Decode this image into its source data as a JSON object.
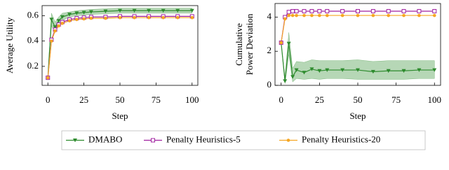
{
  "chart_data": [
    {
      "type": "line",
      "xlabel": "Step",
      "ylabel": [
        "Average Utility"
      ],
      "x": [
        0,
        2.5,
        5,
        7.5,
        10,
        15,
        20,
        25,
        30,
        40,
        50,
        60,
        70,
        80,
        90,
        100
      ],
      "xlim": [
        -4,
        104
      ],
      "xticks": [
        0,
        25,
        50,
        75,
        100
      ],
      "ylim": [
        0.05,
        0.68
      ],
      "yticks": [
        0.2,
        0.4,
        0.6
      ],
      "legend": "bottom",
      "series": [
        {
          "name": "DMABO",
          "color": "#2e8b2e",
          "marker": "triangle-down",
          "values": [
            0.11,
            0.57,
            0.51,
            0.56,
            0.59,
            0.61,
            0.62,
            0.625,
            0.63,
            0.635,
            0.64,
            0.64,
            0.64,
            0.64,
            0.64,
            0.64
          ],
          "lower": [
            0.11,
            0.52,
            0.47,
            0.53,
            0.56,
            0.59,
            0.6,
            0.605,
            0.61,
            0.615,
            0.62,
            0.62,
            0.62,
            0.62,
            0.62,
            0.62
          ],
          "upper": [
            0.11,
            0.62,
            0.55,
            0.59,
            0.62,
            0.63,
            0.64,
            0.645,
            0.65,
            0.655,
            0.66,
            0.66,
            0.66,
            0.66,
            0.66,
            0.66
          ]
        },
        {
          "name": "Penalty Heuristics-5",
          "color": "#a020a0",
          "marker": "square",
          "values": [
            0.11,
            0.41,
            0.49,
            0.53,
            0.55,
            0.57,
            0.58,
            0.585,
            0.59,
            0.59,
            0.595,
            0.595,
            0.595,
            0.595,
            0.595,
            0.595
          ]
        },
        {
          "name": "Penalty Heuristics-20",
          "color": "#f5a623",
          "marker": "circle",
          "values": [
            0.11,
            0.4,
            0.48,
            0.52,
            0.54,
            0.56,
            0.57,
            0.575,
            0.58,
            0.58,
            0.585,
            0.585,
            0.585,
            0.585,
            0.585,
            0.585
          ]
        }
      ]
    },
    {
      "type": "line",
      "xlabel": "Step",
      "ylabel": [
        "Cumulative",
        "Power Deviation"
      ],
      "x": [
        0,
        2.5,
        5,
        7.5,
        10,
        15,
        20,
        25,
        30,
        40,
        50,
        60,
        70,
        80,
        90,
        100
      ],
      "xlim": [
        -4,
        104
      ],
      "xticks": [
        0,
        25,
        50,
        75,
        100
      ],
      "ylim": [
        0,
        4.8
      ],
      "yticks": [
        0,
        2,
        4
      ],
      "series": [
        {
          "color": "#2e8b2e",
          "marker": "triangle-down",
          "values": [
            2.5,
            0.25,
            2.45,
            0.5,
            0.9,
            0.75,
            0.95,
            0.85,
            0.9,
            0.9,
            0.9,
            0.8,
            0.85,
            0.85,
            0.9,
            0.9
          ],
          "lower": [
            2.5,
            0.1,
            1.8,
            0.2,
            0.4,
            0.35,
            0.4,
            0.35,
            0.4,
            0.4,
            0.35,
            0.35,
            0.35,
            0.35,
            0.4,
            0.4
          ],
          "upper": [
            2.5,
            0.5,
            3.1,
            1.0,
            1.4,
            1.35,
            1.5,
            1.45,
            1.45,
            1.45,
            1.5,
            1.4,
            1.45,
            1.45,
            1.45,
            1.45
          ]
        },
        {
          "color": "#a020a0",
          "marker": "square",
          "values": [
            2.5,
            4.0,
            4.3,
            4.35,
            4.35,
            4.35,
            4.35,
            4.35,
            4.35,
            4.35,
            4.35,
            4.35,
            4.35,
            4.35,
            4.35,
            4.35
          ]
        },
        {
          "color": "#f5a623",
          "marker": "circle",
          "values": [
            2.5,
            3.9,
            4.1,
            4.1,
            4.1,
            4.1,
            4.1,
            4.1,
            4.1,
            4.1,
            4.1,
            4.1,
            4.1,
            4.1,
            4.1,
            4.1
          ]
        }
      ]
    }
  ]
}
